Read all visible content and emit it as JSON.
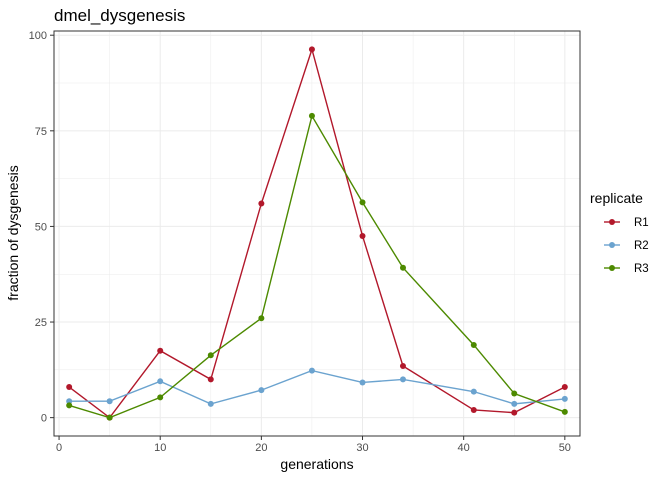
{
  "chart_data": {
    "type": "line",
    "title": "dmel_dysgenesis",
    "xlabel": "generations",
    "ylabel": "fraction of dysgenesis",
    "xlim": [
      -0.5,
      51.5
    ],
    "ylim": [
      -4.8,
      101.1
    ],
    "xticks": [
      0,
      10,
      20,
      30,
      40,
      50
    ],
    "yticks": [
      0,
      25,
      50,
      75,
      100
    ],
    "grid": true,
    "legend_title": "replicate",
    "legend_position": "right",
    "series": [
      {
        "name": "R1",
        "color": "#b2182b",
        "x": [
          1,
          5,
          10,
          15,
          20,
          25,
          30,
          34,
          41,
          45,
          50
        ],
        "y": [
          8.0,
          0.0,
          17.5,
          10.0,
          56.0,
          96.3,
          47.5,
          13.5,
          2.0,
          1.3,
          8.0
        ]
      },
      {
        "name": "R2",
        "color": "#6ba3cf",
        "x": [
          1,
          5,
          10,
          15,
          20,
          25,
          30,
          34,
          41,
          45,
          50
        ],
        "y": [
          4.3,
          4.3,
          9.5,
          3.6,
          7.2,
          12.3,
          9.2,
          10.0,
          6.8,
          3.6,
          4.9
        ]
      },
      {
        "name": "R3",
        "color": "#4d8a00",
        "x": [
          1,
          5,
          10,
          15,
          20,
          25,
          30,
          34,
          41,
          45,
          50
        ],
        "y": [
          3.2,
          0.0,
          5.3,
          16.3,
          26.0,
          78.9,
          56.3,
          39.2,
          19.0,
          6.3,
          1.5
        ]
      }
    ]
  }
}
